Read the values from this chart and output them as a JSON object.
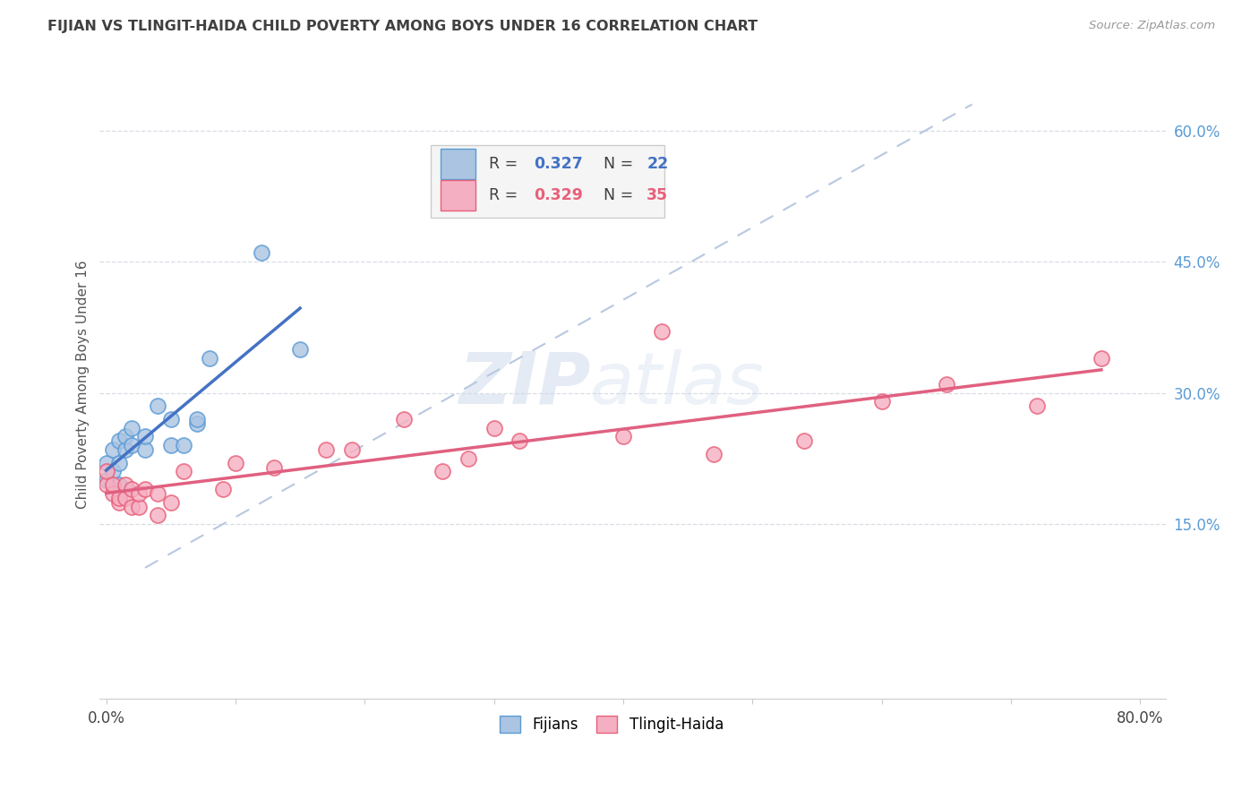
{
  "title": "FIJIAN VS TLINGIT-HAIDA CHILD POVERTY AMONG BOYS UNDER 16 CORRELATION CHART",
  "source": "Source: ZipAtlas.com",
  "ylabel": "Child Poverty Among Boys Under 16",
  "xlim": [
    -0.005,
    0.82
  ],
  "ylim": [
    -0.05,
    0.67
  ],
  "ytick_positions": [
    0.15,
    0.3,
    0.45,
    0.6
  ],
  "ytick_labels": [
    "15.0%",
    "30.0%",
    "45.0%",
    "60.0%"
  ],
  "fijian_color": "#aac4e2",
  "tlingit_color": "#f5afc2",
  "fijian_edge_color": "#5b9bd5",
  "tlingit_edge_color": "#e8607a",
  "fijian_line_color": "#4472c4",
  "tlingit_line_color": "#e06080",
  "diagonal_color": "#b8c8e0",
  "fijian_R": 0.327,
  "fijian_N": 22,
  "tlingit_R": 0.329,
  "tlingit_N": 35,
  "fijian_x": [
    0.0,
    0.0,
    0.005,
    0.005,
    0.01,
    0.01,
    0.01,
    0.015,
    0.015,
    0.02,
    0.02,
    0.03,
    0.03,
    0.04,
    0.05,
    0.05,
    0.06,
    0.07,
    0.07,
    0.08,
    0.12,
    0.15
  ],
  "fijian_y": [
    0.2,
    0.22,
    0.21,
    0.235,
    0.195,
    0.22,
    0.245,
    0.235,
    0.25,
    0.24,
    0.26,
    0.235,
    0.25,
    0.285,
    0.24,
    0.27,
    0.24,
    0.265,
    0.27,
    0.34,
    0.46,
    0.35
  ],
  "tlingit_x": [
    0.0,
    0.0,
    0.005,
    0.005,
    0.01,
    0.01,
    0.015,
    0.015,
    0.02,
    0.02,
    0.025,
    0.025,
    0.03,
    0.04,
    0.04,
    0.05,
    0.06,
    0.09,
    0.1,
    0.13,
    0.17,
    0.19,
    0.23,
    0.26,
    0.28,
    0.3,
    0.32,
    0.4,
    0.43,
    0.47,
    0.54,
    0.6,
    0.65,
    0.72,
    0.77
  ],
  "tlingit_y": [
    0.195,
    0.21,
    0.185,
    0.195,
    0.175,
    0.18,
    0.18,
    0.195,
    0.17,
    0.19,
    0.17,
    0.185,
    0.19,
    0.16,
    0.185,
    0.175,
    0.21,
    0.19,
    0.22,
    0.215,
    0.235,
    0.235,
    0.27,
    0.21,
    0.225,
    0.26,
    0.245,
    0.25,
    0.37,
    0.23,
    0.245,
    0.29,
    0.31,
    0.285,
    0.34
  ],
  "watermark_zip": "ZIP",
  "watermark_atlas": "atlas",
  "background_color": "#ffffff",
  "grid_color": "#d8dde6",
  "legend_box_color": "#f5f5f5",
  "legend_border_color": "#cccccc",
  "tick_label_color": "#5b9bd5",
  "axis_label_color": "#555555",
  "title_color": "#404040"
}
